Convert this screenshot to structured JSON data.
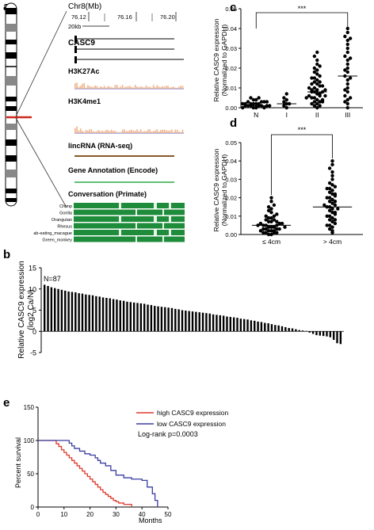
{
  "panel_a": {
    "label": "a",
    "chrom": "Chr8(Mb)",
    "ticks": [
      "76.12",
      "76.16",
      "76.20"
    ],
    "scale": "20kb",
    "tracks": [
      "CASC9",
      "H3K27Ac",
      "H3K4me1",
      "lincRNA (RNA-seq)",
      "Gene Annotation (Encode)",
      "Conversation (Primate)"
    ],
    "species": [
      "Chimp",
      "Gorilla",
      "Orangutan",
      "Rhesus",
      "ab-eating_macague",
      "Green_monkey"
    ],
    "colors": {
      "chromosome_band": "#000000",
      "marker": "#cc2a1e",
      "peaks": "#f2b38a",
      "lincrna": "#8a5a2a",
      "gene_annot": "#2ea84a",
      "conservation": "#1f8c3b"
    }
  },
  "chart_data": [
    {
      "id": "c",
      "type": "scatter",
      "label": "c",
      "ylabel_1": "Relative CASC9 expression",
      "ylabel_2": "(Normalized to GAPDH)",
      "categories": [
        "N",
        "I",
        "II",
        "III"
      ],
      "ylim": [
        0,
        0.05
      ],
      "yticks": [
        "0.00",
        "0.01",
        "0.02",
        "0.03",
        "0.04",
        "0.05"
      ],
      "significance": "***",
      "medians": [
        0.001,
        0.002,
        0.008,
        0.016
      ],
      "series": [
        {
          "category": "N",
          "values": [
            0.0,
            0.0,
            0.001,
            0.001,
            0.001,
            0.001,
            0.002,
            0.002,
            0.002,
            0.002,
            0.003,
            0.003,
            0.003,
            0.004,
            0.004,
            0.005,
            0.005,
            0.0,
            0.001,
            0.002,
            0.003,
            0.001,
            0.002,
            0.0,
            0.001
          ]
        },
        {
          "category": "I",
          "values": [
            0.0,
            0.001,
            0.002,
            0.003,
            0.004,
            0.005,
            0.007,
            0.002
          ]
        },
        {
          "category": "II",
          "values": [
            0.0,
            0.001,
            0.002,
            0.003,
            0.004,
            0.005,
            0.006,
            0.007,
            0.008,
            0.009,
            0.01,
            0.011,
            0.012,
            0.013,
            0.014,
            0.015,
            0.016,
            0.017,
            0.018,
            0.019,
            0.02,
            0.021,
            0.022,
            0.024,
            0.026,
            0.028,
            0.001,
            0.003,
            0.005,
            0.007,
            0.009,
            0.011,
            0.013,
            0.002,
            0.004,
            0.006,
            0.008,
            0.01,
            0.012,
            0.003,
            0.006,
            0.009,
            0.015,
            0.005,
            0.008
          ]
        },
        {
          "category": "III",
          "values": [
            0.0,
            0.002,
            0.004,
            0.006,
            0.008,
            0.01,
            0.012,
            0.014,
            0.016,
            0.018,
            0.02,
            0.022,
            0.024,
            0.026,
            0.028,
            0.03,
            0.032,
            0.034,
            0.036,
            0.038,
            0.04,
            0.005,
            0.015,
            0.025,
            0.035,
            0.003,
            0.009,
            0.019
          ]
        }
      ]
    },
    {
      "id": "d",
      "type": "scatter",
      "label": "d",
      "ylabel_1": "Relative CASC9 expression",
      "ylabel_2": "(Normalized to GAPDH)",
      "categories": [
        "≤ 4cm",
        "> 4cm"
      ],
      "ylim": [
        0,
        0.05
      ],
      "yticks": [
        "0.00",
        "0.01",
        "0.02",
        "0.03",
        "0.04",
        "0.05"
      ],
      "significance": "***",
      "medians": [
        0.005,
        0.015
      ],
      "series": [
        {
          "category": "≤ 4cm",
          "values": [
            0.0,
            0.0,
            0.001,
            0.001,
            0.001,
            0.002,
            0.002,
            0.002,
            0.003,
            0.003,
            0.003,
            0.004,
            0.004,
            0.004,
            0.005,
            0.005,
            0.005,
            0.006,
            0.006,
            0.006,
            0.007,
            0.007,
            0.008,
            0.008,
            0.009,
            0.009,
            0.01,
            0.01,
            0.011,
            0.012,
            0.013,
            0.014,
            0.015,
            0.016,
            0.018,
            0.02,
            0.001,
            0.003,
            0.005,
            0.007,
            0.002,
            0.004
          ]
        },
        {
          "category": "> 4cm",
          "values": [
            0.001,
            0.002,
            0.003,
            0.004,
            0.005,
            0.006,
            0.007,
            0.008,
            0.009,
            0.01,
            0.011,
            0.012,
            0.013,
            0.014,
            0.015,
            0.016,
            0.017,
            0.018,
            0.019,
            0.02,
            0.021,
            0.022,
            0.023,
            0.024,
            0.025,
            0.026,
            0.027,
            0.028,
            0.03,
            0.032,
            0.034,
            0.036,
            0.038,
            0.04,
            0.005,
            0.01,
            0.015,
            0.02,
            0.025,
            0.012,
            0.018,
            0.008,
            0.014,
            0.022,
            0.016
          ]
        }
      ]
    },
    {
      "id": "b",
      "type": "bar",
      "label": "b",
      "annotation": "N=87",
      "ylabel_1": "Relative CASC9 expression",
      "ylabel_2": "(log2 Ca/N)",
      "ylim": [
        -5,
        15
      ],
      "yticks": [
        "-5",
        "0",
        "5",
        "10",
        "15"
      ],
      "values": [
        11.0,
        10.7,
        10.4,
        10.2,
        10.0,
        9.8,
        9.6,
        9.4,
        9.3,
        9.2,
        9.0,
        8.9,
        8.7,
        8.6,
        8.5,
        8.3,
        8.2,
        8.0,
        7.9,
        7.8,
        7.6,
        7.5,
        7.3,
        7.2,
        7.0,
        6.9,
        6.8,
        6.7,
        6.6,
        6.5,
        6.3,
        6.2,
        6.0,
        5.9,
        5.8,
        5.7,
        5.6,
        5.5,
        5.3,
        5.2,
        5.0,
        4.9,
        4.8,
        4.7,
        4.6,
        4.5,
        4.4,
        4.3,
        4.2,
        4.0,
        3.9,
        3.8,
        3.7,
        3.5,
        3.4,
        3.3,
        3.2,
        3.0,
        2.9,
        2.8,
        2.6,
        2.5,
        2.3,
        2.2,
        2.0,
        1.9,
        1.7,
        1.5,
        1.4,
        1.2,
        1.0,
        0.8,
        0.7,
        0.5,
        0.3,
        0.2,
        0.1,
        -0.3,
        -0.6,
        -0.9,
        -1.0,
        -1.1,
        -1.2,
        -1.4,
        -2.0,
        -2.8,
        -3.0
      ]
    },
    {
      "id": "e",
      "type": "line",
      "label": "e",
      "ylabel": "Percent survival",
      "xlabel": "Months",
      "xlim": [
        0,
        50
      ],
      "ylim": [
        0,
        150
      ],
      "xticks": [
        "0",
        "10",
        "20",
        "30",
        "40",
        "50"
      ],
      "yticks": [
        "0",
        "50",
        "100",
        "150"
      ],
      "annotation": "Log-rank p=0.0003",
      "series": [
        {
          "name": "high CASC9 expression",
          "color": "#e0392b",
          "x": [
            0,
            6,
            7,
            8,
            9,
            10,
            11,
            12,
            13,
            14,
            15,
            16,
            17,
            18,
            19,
            20,
            21,
            22,
            23,
            24,
            25,
            26,
            27,
            28,
            29,
            30,
            31,
            33,
            36
          ],
          "y": [
            100,
            100,
            95,
            91,
            86,
            82,
            78,
            74,
            70,
            66,
            62,
            58,
            54,
            50,
            46,
            42,
            38,
            34,
            30,
            26,
            22,
            19,
            16,
            13,
            10,
            8,
            6,
            4,
            0
          ]
        },
        {
          "name": "low CASC9 expression",
          "color": "#3a3fa0",
          "x": [
            0,
            10,
            12,
            13,
            14,
            16,
            18,
            20,
            22,
            23,
            24,
            26,
            28,
            30,
            33,
            36,
            40,
            42,
            44,
            45,
            46
          ],
          "y": [
            100,
            100,
            96,
            92,
            88,
            84,
            80,
            78,
            74,
            70,
            66,
            62,
            55,
            48,
            44,
            42,
            40,
            30,
            20,
            10,
            0
          ]
        }
      ]
    }
  ]
}
